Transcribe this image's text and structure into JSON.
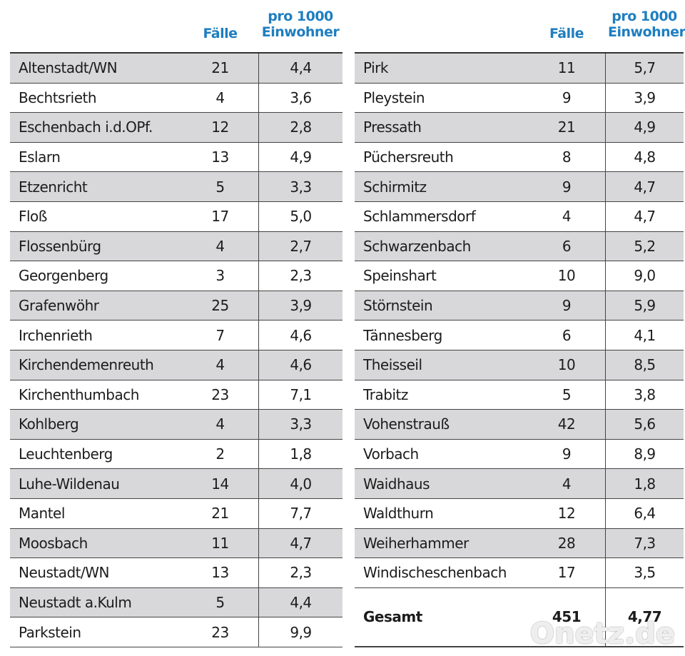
{
  "left": {
    "header": {
      "cases": "Fälle",
      "rate": "pro 1000 Einwohner"
    },
    "rows": [
      [
        "Altenstadt/WN",
        "21",
        "4,4"
      ],
      [
        "Bechtsrieth",
        "4",
        "3,6"
      ],
      [
        "Eschenbach i.d.OPf.",
        "12",
        "2,8"
      ],
      [
        "Eslarn",
        "13",
        "4,9"
      ],
      [
        "Etzenricht",
        "5",
        "3,3"
      ],
      [
        "Floß",
        "17",
        "5,0"
      ],
      [
        "Flossenbürg",
        "4",
        "2,7"
      ],
      [
        "Georgenberg",
        "3",
        "2,3"
      ],
      [
        "Grafenwöhr",
        "25",
        "3,9"
      ],
      [
        "Irchenrieth",
        "7",
        "4,6"
      ],
      [
        "Kirchendemenreuth",
        "4",
        "4,6"
      ],
      [
        "Kirchenthumbach",
        "23",
        "7,1"
      ],
      [
        "Kohlberg",
        "4",
        "3,3"
      ],
      [
        "Leuchtenberg",
        "2",
        "1,8"
      ],
      [
        "Luhe-Wildenau",
        "14",
        "4,0"
      ],
      [
        "Mantel",
        "21",
        "7,7"
      ],
      [
        "Moosbach",
        "11",
        "4,7"
      ],
      [
        "Neustadt/WN",
        "13",
        "2,3"
      ],
      [
        "Neustadt a.Kulm",
        "5",
        "4,4"
      ],
      [
        "Parkstein",
        "23",
        "9,9"
      ]
    ]
  },
  "right": {
    "header": {
      "cases": "Fälle",
      "rate": "pro 1000 Einwohner"
    },
    "rows": [
      [
        "Pirk",
        "11",
        "5,7"
      ],
      [
        "Pleystein",
        "9",
        "3,9"
      ],
      [
        "Pressath",
        "21",
        "4,9"
      ],
      [
        "Püchersreuth",
        "8",
        "4,8"
      ],
      [
        "Schirmitz",
        "9",
        "4,7"
      ],
      [
        "Schlammersdorf",
        "4",
        "4,7"
      ],
      [
        "Schwarzenbach",
        "6",
        "5,2"
      ],
      [
        "Speinshart",
        "10",
        "9,0"
      ],
      [
        "Störnstein",
        "9",
        "5,9"
      ],
      [
        "Tännesberg",
        "6",
        "4,1"
      ],
      [
        "Theisseil",
        "10",
        "8,5"
      ],
      [
        "Trabitz",
        "5",
        "3,8"
      ],
      [
        "Vohenstrauß",
        "42",
        "5,6"
      ],
      [
        "Vorbach",
        "9",
        "8,9"
      ],
      [
        "Waidhaus",
        "4",
        "1,8"
      ],
      [
        "Waldthurn",
        "12",
        "6,4"
      ],
      [
        "Weiherhammer",
        "28",
        "7,3"
      ],
      [
        "Windischeschenbach",
        "17",
        "3,5"
      ]
    ],
    "total": [
      "Gesamt",
      "451",
      "4,77"
    ]
  },
  "watermark": "Onetz.de"
}
